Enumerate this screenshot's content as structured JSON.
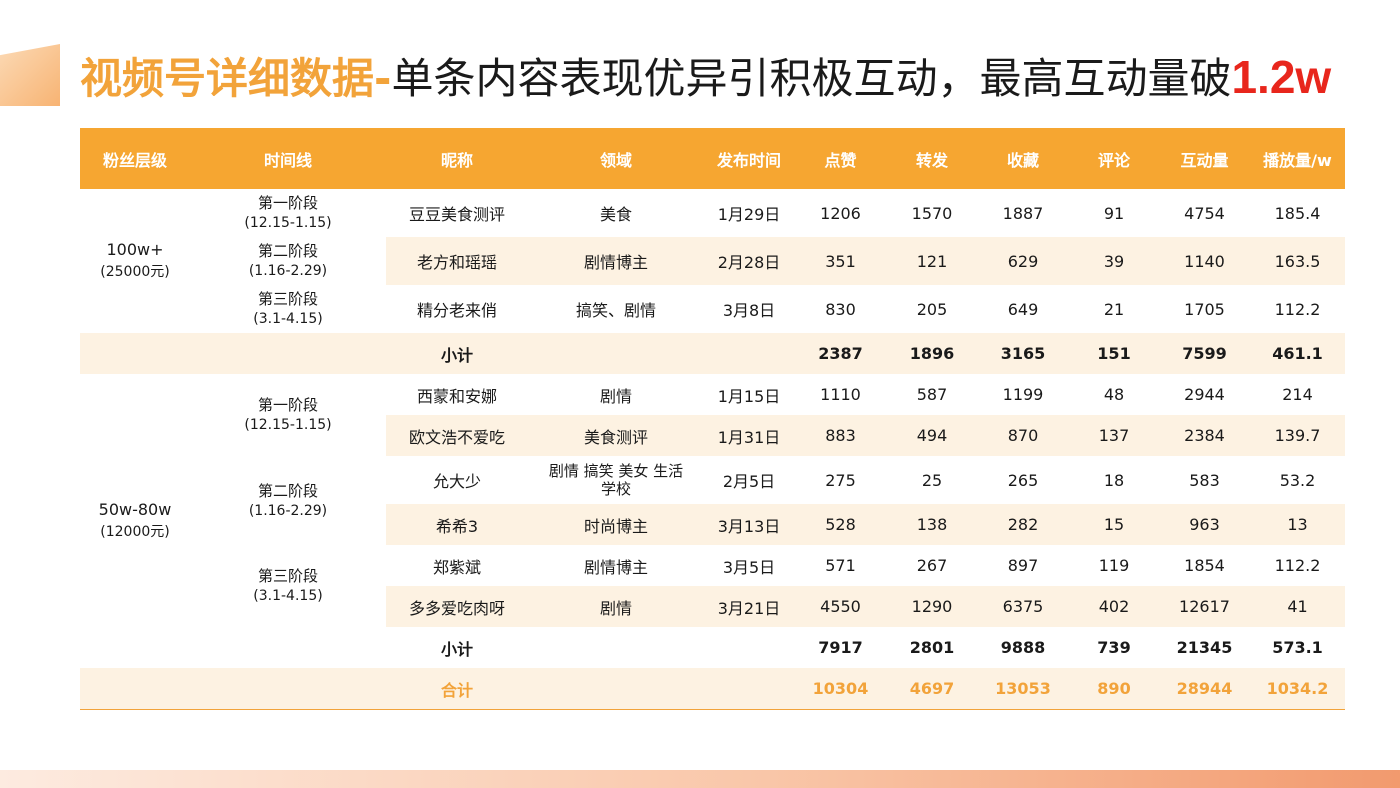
{
  "title": {
    "part1": "视频号详细数据-",
    "part2": "单条内容表现优异引积极互动，最高互动量破",
    "part3": "1.2w"
  },
  "table": {
    "headers": [
      "粉丝层级",
      "时间线",
      "昵称",
      "领域",
      "发布时间",
      "点赞",
      "转发",
      "收藏",
      "评论",
      "互动量",
      "播放量/w"
    ],
    "group1": {
      "fans": "100w+",
      "fans_price": "(25000元)",
      "rows": [
        {
          "stage": "第一阶段",
          "range": "(12.15-1.15)",
          "name": "豆豆美食测评",
          "genre": "美食",
          "date": "1月29日",
          "likes": "1206",
          "shares": "1570",
          "saves": "1887",
          "comments": "91",
          "interactions": "4754",
          "plays": "185.4"
        },
        {
          "stage": "第二阶段",
          "range": "(1.16-2.29)",
          "name": "老方和瑶瑶",
          "genre": "剧情博主",
          "date": "2月28日",
          "likes": "351",
          "shares": "121",
          "saves": "629",
          "comments": "39",
          "interactions": "1140",
          "plays": "163.5"
        },
        {
          "stage": "第三阶段",
          "range": "(3.1-4.15)",
          "name": "精分老来俏",
          "genre": "搞笑、剧情",
          "date": "3月8日",
          "likes": "830",
          "shares": "205",
          "saves": "649",
          "comments": "21",
          "interactions": "1705",
          "plays": "112.2"
        }
      ],
      "subtotal": {
        "label": "小计",
        "likes": "2387",
        "shares": "1896",
        "saves": "3165",
        "comments": "151",
        "interactions": "7599",
        "plays": "461.1"
      }
    },
    "group2": {
      "fans": "50w-80w",
      "fans_price": "(12000元)",
      "stages": [
        {
          "stage": "第一阶段",
          "range": "(12.15-1.15)"
        },
        {
          "stage": "第二阶段",
          "range": "(1.16-2.29)"
        },
        {
          "stage": "第三阶段",
          "range": "(3.1-4.15)"
        }
      ],
      "rows": [
        {
          "name": "西蒙和安娜",
          "genre": "剧情",
          "date": "1月15日",
          "likes": "1110",
          "shares": "587",
          "saves": "1199",
          "comments": "48",
          "interactions": "2944",
          "plays": "214"
        },
        {
          "name": "欧文浩不爱吃",
          "genre": "美食测评",
          "date": "1月31日",
          "likes": "883",
          "shares": "494",
          "saves": "870",
          "comments": "137",
          "interactions": "2384",
          "plays": "139.7"
        },
        {
          "name": "允大少",
          "genre": "剧情 搞笑 美女 生活",
          "genre_line2": "学校",
          "date": "2月5日",
          "likes": "275",
          "shares": "25",
          "saves": "265",
          "comments": "18",
          "interactions": "583",
          "plays": "53.2"
        },
        {
          "name": "希希3",
          "genre": "时尚博主",
          "date": "3月13日",
          "likes": "528",
          "shares": "138",
          "saves": "282",
          "comments": "15",
          "interactions": "963",
          "plays": "13"
        },
        {
          "name": "郑紫斌",
          "genre": "剧情博主",
          "date": "3月5日",
          "likes": "571",
          "shares": "267",
          "saves": "897",
          "comments": "119",
          "interactions": "1854",
          "plays": "112.2"
        },
        {
          "name": "多多爱吃肉呀",
          "genre": "剧情",
          "date": "3月21日",
          "likes": "4550",
          "shares": "1290",
          "saves": "6375",
          "comments": "402",
          "interactions": "12617",
          "plays": "41"
        }
      ],
      "subtotal": {
        "label": "小计",
        "likes": "7917",
        "shares": "2801",
        "saves": "9888",
        "comments": "739",
        "interactions": "21345",
        "plays": "573.1"
      }
    },
    "total": {
      "label": "合计",
      "likes": "10304",
      "shares": "4697",
      "saves": "13053",
      "comments": "890",
      "interactions": "28944",
      "plays": "1034.2"
    }
  },
  "colors": {
    "header": "#f6a631",
    "title_accent": "#f2a33a",
    "highlight": "#e8261c",
    "row_alt": "#fdf2e2"
  }
}
